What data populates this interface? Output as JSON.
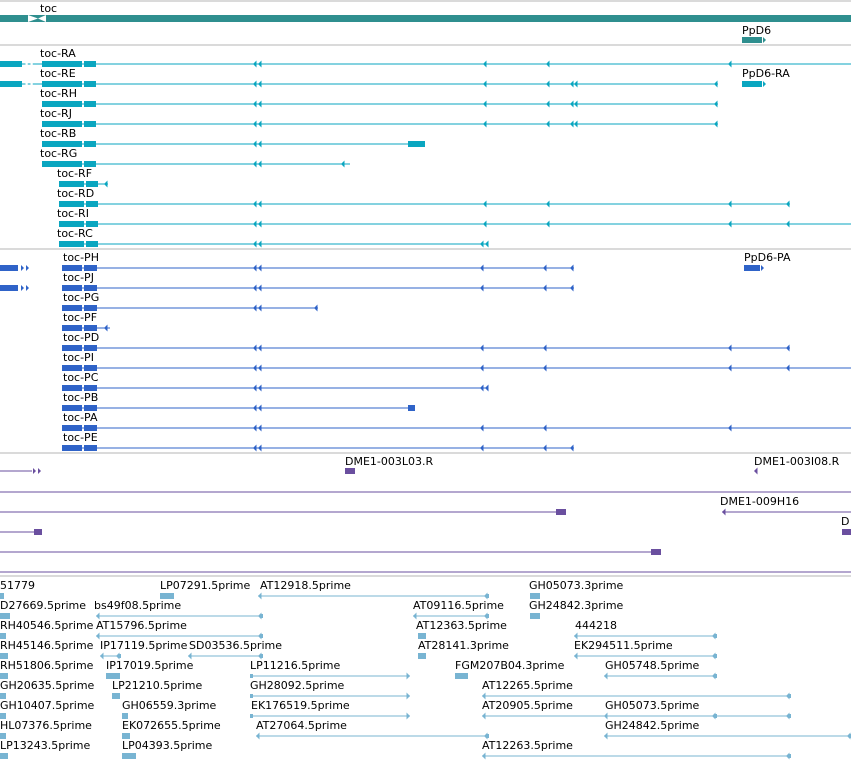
{
  "colors": {
    "gene": "#2f8f8f",
    "transcript": "#0aa6c0",
    "protein": "#2f63c8",
    "clone": "#6a4f9f",
    "est": "#78b4d2",
    "track_divider": "#b5b5b5"
  },
  "gene_track": {
    "genes": [
      {
        "label": "toc"
      },
      {
        "label": "PpD6"
      }
    ]
  },
  "transcript_track": {
    "transcripts": [
      {
        "label": "toc-RA"
      },
      {
        "label": "toc-RE"
      },
      {
        "label": "toc-RH"
      },
      {
        "label": "toc-RJ"
      },
      {
        "label": "toc-RB"
      },
      {
        "label": "toc-RG"
      },
      {
        "label": "toc-RF"
      },
      {
        "label": "toc-RD"
      },
      {
        "label": "toc-RI"
      },
      {
        "label": "toc-RC"
      },
      {
        "label": "PpD6-RA"
      }
    ]
  },
  "protein_track": {
    "proteins": [
      {
        "label": "toc-PH"
      },
      {
        "label": "toc-PJ"
      },
      {
        "label": "toc-PG"
      },
      {
        "label": "toc-PF"
      },
      {
        "label": "toc-PD"
      },
      {
        "label": "toc-PI"
      },
      {
        "label": "toc-PC"
      },
      {
        "label": "toc-PB"
      },
      {
        "label": "toc-PA"
      },
      {
        "label": "toc-PE"
      },
      {
        "label": "PpD6-PA"
      }
    ]
  },
  "clone_track": {
    "clones": [
      {
        "label": "DME1-003L03.R"
      },
      {
        "label": "DME1-003I08.R"
      },
      {
        "label": "DME1-009H16"
      },
      {
        "label": "D"
      }
    ]
  },
  "est_track": {
    "ests": [
      {
        "label": "51779"
      },
      {
        "label": "LP07291.5prime"
      },
      {
        "label": "AT12918.5prime"
      },
      {
        "label": "GH05073.3prime"
      },
      {
        "label": "D27669.5prime"
      },
      {
        "label": "bs49f08.5prime"
      },
      {
        "label": "AT09116.5prime"
      },
      {
        "label": "GH24842.3prime"
      },
      {
        "label": "RH40546.5prime"
      },
      {
        "label": "AT15796.5prime"
      },
      {
        "label": "AT12363.5prime"
      },
      {
        "label": "444218"
      },
      {
        "label": "RH45146.5prime"
      },
      {
        "label": "IP17119.5prime"
      },
      {
        "label": "SD03536.5prime"
      },
      {
        "label": "AT28141.3prime"
      },
      {
        "label": "EK294511.5prime"
      },
      {
        "label": "RH51806.5prime"
      },
      {
        "label": "IP17019.5prime"
      },
      {
        "label": "LP11216.5prime"
      },
      {
        "label": "FGM207B04.3prime"
      },
      {
        "label": "GH05748.5prime"
      },
      {
        "label": "GH20635.5prime"
      },
      {
        "label": "LP21210.5prime"
      },
      {
        "label": "GH28092.5prime"
      },
      {
        "label": "AT12265.5prime"
      },
      {
        "label": "GH10407.5prime"
      },
      {
        "label": "GH06559.3prime"
      },
      {
        "label": "EK176519.5prime"
      },
      {
        "label": "AT20905.5prime"
      },
      {
        "label": "GH05073.5prime"
      },
      {
        "label": "HL07376.5prime"
      },
      {
        "label": "EK072655.5prime"
      },
      {
        "label": "AT27064.5prime"
      },
      {
        "label": "GH24842.5prime"
      },
      {
        "label": "LP13243.5prime"
      },
      {
        "label": "LP04393.5prime"
      },
      {
        "label": "AT12263.5prime"
      }
    ]
  }
}
